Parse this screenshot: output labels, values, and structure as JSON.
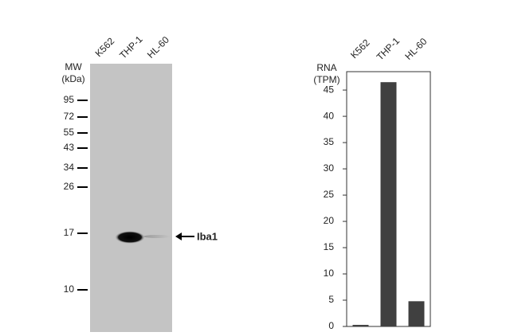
{
  "blot": {
    "lanes": [
      "K562",
      "THP-1",
      "HL-60"
    ],
    "mw_label": "MW",
    "mw_unit": "(kDa)",
    "markers": [
      "95",
      "72",
      "55",
      "43",
      "34",
      "26",
      "17",
      "10"
    ],
    "band_label": "Iba1"
  },
  "chart_data": {
    "type": "bar",
    "ylabel": "RNA",
    "ylabel_unit": "(TPM)",
    "categories": [
      "K562",
      "THP-1",
      "HL-60"
    ],
    "values": [
      0.3,
      46.5,
      4.8
    ],
    "color": "#404040",
    "ylim": [
      0,
      48.5
    ],
    "yticks": [
      0,
      5,
      10,
      15,
      20,
      25,
      30,
      35,
      40,
      45
    ],
    "grid": false
  }
}
